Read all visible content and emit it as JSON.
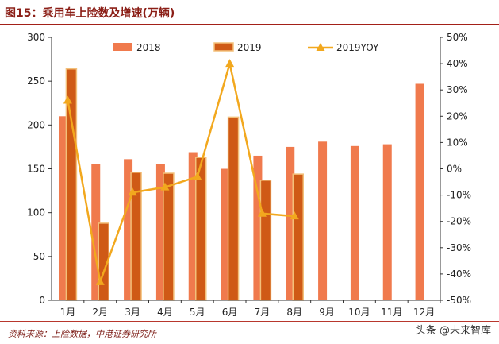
{
  "header": {
    "title": "图15：乘用车上险数及增速(万辆)"
  },
  "footer": {
    "source": "资料来源：上险数据，中港证券研究所",
    "watermark": "头条 @未来智库"
  },
  "colors": {
    "s2018": "#f07a4d",
    "s2019": "#cf5a16",
    "s2019_edge": "#f3c07a",
    "yoy": "#f2a81e",
    "axis": "#333333"
  },
  "chart_data": {
    "type": "bar",
    "categories": [
      "1月",
      "2月",
      "3月",
      "4月",
      "5月",
      "6月",
      "7月",
      "8月",
      "9月",
      "10月",
      "11月",
      "12月"
    ],
    "series": [
      {
        "name": "2018",
        "values": [
          210,
          155,
          161,
          155,
          169,
          150,
          165,
          175,
          181,
          176,
          178,
          247
        ]
      },
      {
        "name": "2019",
        "values": [
          264,
          88,
          146,
          145,
          163,
          209,
          137,
          144,
          null,
          null,
          null,
          null
        ]
      },
      {
        "name": "2019YOY",
        "type": "line",
        "axis": "right",
        "values": [
          26,
          -43,
          -9,
          -7,
          -3,
          40,
          -17,
          -18,
          null,
          null,
          null,
          null
        ]
      }
    ],
    "left_axis": {
      "ylim": [
        0,
        300
      ],
      "ticks": [
        "0",
        "50",
        "100",
        "150",
        "200",
        "250",
        "300"
      ]
    },
    "right_axis": {
      "ylim": [
        -50,
        50
      ],
      "ticks": [
        "-50%",
        "-40%",
        "-30%",
        "-20%",
        "-10%",
        "0%",
        "10%",
        "20%",
        "30%",
        "40%",
        "50%"
      ]
    },
    "legend": {
      "position": "top",
      "entries": [
        "2018",
        "2019",
        "2019YOY"
      ]
    },
    "grid": false
  }
}
